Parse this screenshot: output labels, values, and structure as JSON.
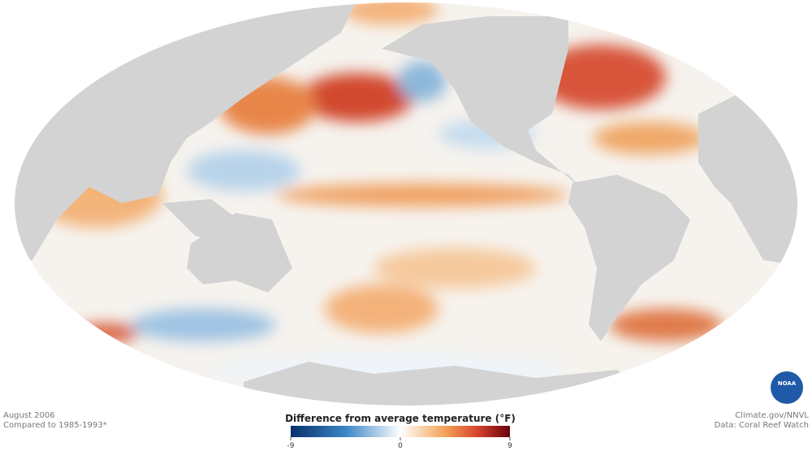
{
  "date": "August 2006",
  "baseline": "Compared to 1985-1993*",
  "legend": {
    "title": "Difference from average temperature (°F)",
    "ticks": [
      -9,
      0,
      9
    ]
  },
  "credit": "Climate.gov/NNVL",
  "source": "Data: Coral Reef Watch",
  "logo": "NOAA"
}
